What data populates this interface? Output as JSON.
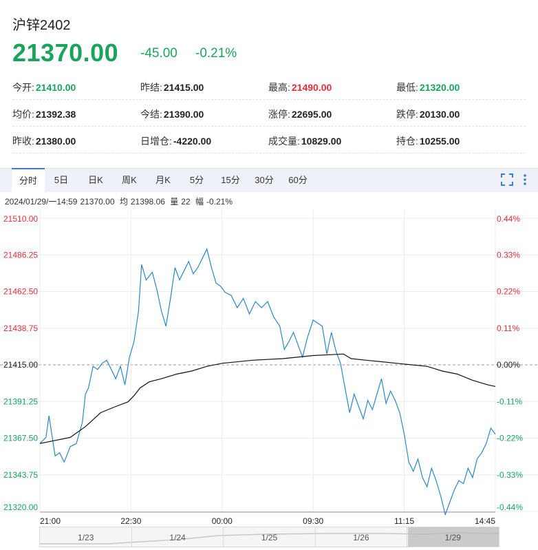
{
  "instrument": {
    "name": "沪锌2402",
    "price": "21370.00",
    "change": "-45.00",
    "change_pct": "-0.21%"
  },
  "stats": [
    [
      {
        "label": "今开:",
        "value": "21410.00",
        "color": "green"
      },
      {
        "label": "昨结:",
        "value": "21415.00",
        "color": "black"
      },
      {
        "label": "最高:",
        "value": "21490.00",
        "color": "red"
      },
      {
        "label": "最低:",
        "value": "21320.00",
        "color": "green"
      }
    ],
    [
      {
        "label": "均价:",
        "value": "21392.38",
        "color": "black"
      },
      {
        "label": "今结:",
        "value": "21390.00",
        "color": "black"
      },
      {
        "label": "涨停:",
        "value": "22695.00",
        "color": "black"
      },
      {
        "label": "跌停:",
        "value": "20130.00",
        "color": "black"
      }
    ],
    [
      {
        "label": "昨收:",
        "value": "21380.00",
        "color": "black"
      },
      {
        "label": "日增仓:",
        "value": "-4220.00",
        "color": "black"
      },
      {
        "label": "成交量:",
        "value": "10829.00",
        "color": "black"
      },
      {
        "label": "持仓:",
        "value": "10255.00",
        "color": "black"
      }
    ]
  ],
  "tabs": [
    "分时",
    "5日",
    "日K",
    "周K",
    "月K",
    "5分",
    "15分",
    "30分",
    "60分"
  ],
  "active_tab": "分时",
  "icons": {
    "fullscreen": "fullscreen-icon",
    "more": "more-vertical-icon"
  },
  "info_bar": {
    "time": "2024/01/29/一14:59",
    "price_value": "21370.00",
    "avg_label": "均",
    "avg_value": "21398.06",
    "vol_label": "量",
    "vol_value": "22",
    "amp_label": "幅",
    "amp_value": "-0.21%"
  },
  "colors": {
    "up": "#e0303a",
    "down": "#19a35b",
    "price_line": "#2a86c8",
    "avg_line": "#111111",
    "accent": "#3b7bd6"
  },
  "chart_data": {
    "type": "line",
    "y_ticks": [
      "21510.00",
      "21486.25",
      "21462.50",
      "21438.75",
      "21415.00",
      "21391.25",
      "21367.50",
      "21343.75",
      "21320.00"
    ],
    "y_pct_ticks": [
      "0.44%",
      "0.33%",
      "0.22%",
      "0.11%",
      "0.00%",
      "-0.11%",
      "-0.22%",
      "-0.33%",
      "-0.44%"
    ],
    "ylim": [
      21320,
      21510
    ],
    "reference": 21415,
    "x_ticks": [
      "21:00",
      "22:30",
      "00:00",
      "09:30",
      "11:15",
      "14:45"
    ],
    "x_tick_index": [
      0,
      60,
      120,
      180,
      240,
      300
    ],
    "n_points": 300,
    "price": [
      [
        0,
        21364
      ],
      [
        4,
        21368
      ],
      [
        6,
        21382
      ],
      [
        10,
        21356
      ],
      [
        13,
        21358
      ],
      [
        16,
        21352
      ],
      [
        20,
        21362
      ],
      [
        24,
        21364
      ],
      [
        28,
        21378
      ],
      [
        30,
        21396
      ],
      [
        32,
        21400
      ],
      [
        35,
        21414
      ],
      [
        38,
        21412
      ],
      [
        41,
        21416
      ],
      [
        44,
        21418
      ],
      [
        47,
        21412
      ],
      [
        50,
        21406
      ],
      [
        53,
        21414
      ],
      [
        56,
        21402
      ],
      [
        59,
        21420
      ],
      [
        62,
        21430
      ],
      [
        65,
        21450
      ],
      [
        67,
        21480
      ],
      [
        70,
        21470
      ],
      [
        74,
        21475
      ],
      [
        77,
        21464
      ],
      [
        80,
        21450
      ],
      [
        83,
        21440
      ],
      [
        86,
        21458
      ],
      [
        89,
        21478
      ],
      [
        92,
        21470
      ],
      [
        95,
        21476
      ],
      [
        98,
        21482
      ],
      [
        101,
        21474
      ],
      [
        104,
        21478
      ],
      [
        107,
        21484
      ],
      [
        110,
        21490
      ],
      [
        113,
        21478
      ],
      [
        116,
        21468
      ],
      [
        119,
        21466
      ],
      [
        122,
        21462
      ],
      [
        126,
        21460
      ],
      [
        130,
        21452
      ],
      [
        134,
        21458
      ],
      [
        138,
        21448
      ],
      [
        142,
        21456
      ],
      [
        146,
        21452
      ],
      [
        150,
        21456
      ],
      [
        154,
        21446
      ],
      [
        158,
        21440
      ],
      [
        161,
        21425
      ],
      [
        164,
        21430
      ],
      [
        167,
        21436
      ],
      [
        170,
        21428
      ],
      [
        173,
        21420
      ],
      [
        176,
        21432
      ],
      [
        180,
        21444
      ],
      [
        183,
        21442
      ],
      [
        186,
        21440
      ],
      [
        189,
        21422
      ],
      [
        192,
        21436
      ],
      [
        195,
        21424
      ],
      [
        198,
        21416
      ],
      [
        201,
        21400
      ],
      [
        204,
        21384
      ],
      [
        207,
        21396
      ],
      [
        210,
        21388
      ],
      [
        213,
        21380
      ],
      [
        216,
        21392
      ],
      [
        219,
        21386
      ],
      [
        222,
        21396
      ],
      [
        225,
        21406
      ],
      [
        228,
        21390
      ],
      [
        231,
        21398
      ],
      [
        234,
        21392
      ],
      [
        237,
        21384
      ],
      [
        240,
        21370
      ],
      [
        243,
        21352
      ],
      [
        246,
        21346
      ],
      [
        249,
        21354
      ],
      [
        252,
        21342
      ],
      [
        255,
        21336
      ],
      [
        258,
        21348
      ],
      [
        261,
        21340
      ],
      [
        264,
        21330
      ],
      [
        267,
        21318
      ],
      [
        270,
        21326
      ],
      [
        273,
        21334
      ],
      [
        276,
        21340
      ],
      [
        279,
        21338
      ],
      [
        282,
        21348
      ],
      [
        285,
        21342
      ],
      [
        288,
        21354
      ],
      [
        291,
        21358
      ],
      [
        294,
        21364
      ],
      [
        297,
        21374
      ],
      [
        300,
        21370
      ]
    ],
    "average": [
      [
        0,
        21364
      ],
      [
        20,
        21368
      ],
      [
        30,
        21375
      ],
      [
        40,
        21384
      ],
      [
        50,
        21388
      ],
      [
        58,
        21391
      ],
      [
        62,
        21395
      ],
      [
        66,
        21400
      ],
      [
        72,
        21404
      ],
      [
        80,
        21406
      ],
      [
        90,
        21409
      ],
      [
        100,
        21411
      ],
      [
        110,
        21414
      ],
      [
        120,
        21416
      ],
      [
        140,
        21418
      ],
      [
        160,
        21419
      ],
      [
        180,
        21421
      ],
      [
        200,
        21422
      ],
      [
        205,
        21419
      ],
      [
        215,
        21418
      ],
      [
        225,
        21417
      ],
      [
        235,
        21416
      ],
      [
        245,
        21415
      ],
      [
        255,
        21414
      ],
      [
        265,
        21411
      ],
      [
        275,
        21409
      ],
      [
        285,
        21405
      ],
      [
        295,
        21402
      ],
      [
        300,
        21401
      ]
    ]
  },
  "navigator": {
    "labels": [
      "1/23",
      "1/24",
      "1/25",
      "1/26",
      "1/29"
    ]
  }
}
